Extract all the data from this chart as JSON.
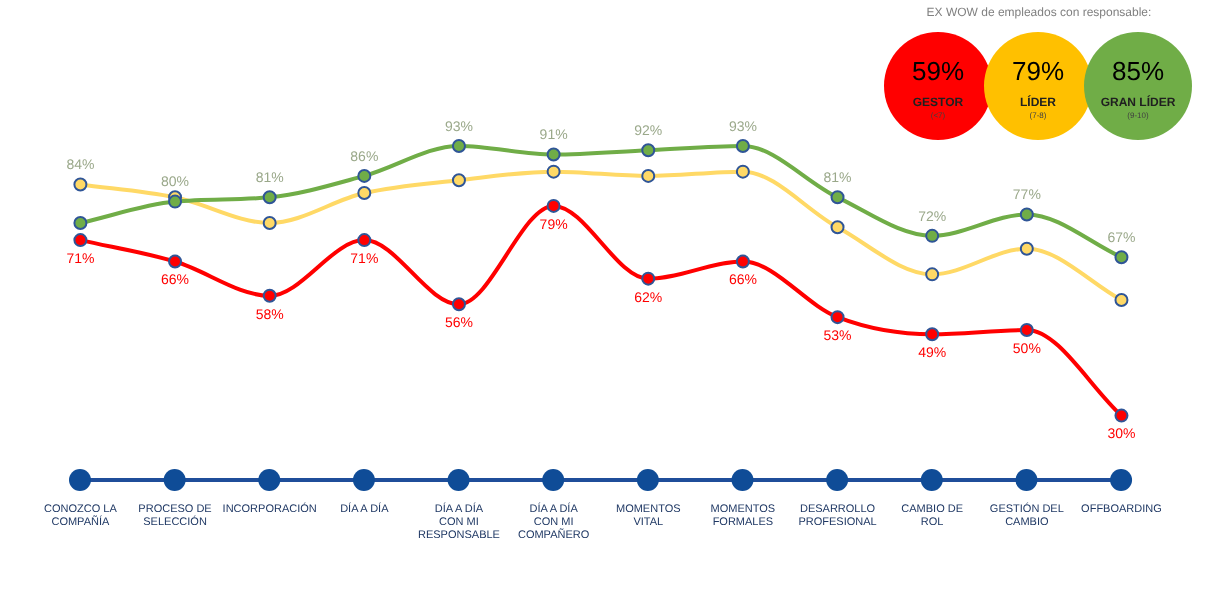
{
  "chart_data": [
    {
      "type": "line",
      "categories": [
        "CONOZCO LA COMPAÑÍA",
        "PROCESO DE SELECCIÓN",
        "INCORPORACIÓN",
        "DÍA A DÍA",
        "DÍA A DÍA CON MI RESPONSABLE",
        "DÍA A DÍA CON MI COMPAÑERO",
        "MOMENTOS VITAL",
        "MOMENTOS FORMALES",
        "DESARROLLO PROFESIONAL",
        "CAMBIO DE ROL",
        "GESTIÓN DEL CAMBIO",
        "OFFBOARDING"
      ],
      "series": [
        {
          "color": "#70ad47",
          "values": [
            75,
            80,
            81,
            86,
            93,
            91,
            92,
            93,
            81,
            72,
            77,
            67
          ],
          "value_labels": [
            null,
            "80%",
            "81%",
            "86%",
            "93%",
            "91%",
            "92%",
            "93%",
            "81%",
            "72%",
            "77%",
            "67%"
          ]
        },
        {
          "color": "#ffd966",
          "values": [
            84,
            81,
            75,
            82,
            85,
            87,
            86,
            87,
            74,
            63,
            69,
            57
          ],
          "value_labels": [
            "84%",
            null,
            null,
            null,
            null,
            null,
            null,
            null,
            null,
            null,
            null,
            null
          ]
        },
        {
          "color": "#ff0000",
          "values": [
            71,
            66,
            58,
            71,
            56,
            79,
            62,
            66,
            53,
            49,
            50,
            30
          ],
          "value_labels": [
            "71%",
            "66%",
            "58%",
            "71%",
            "56%",
            "79%",
            "62%",
            "66%",
            "53%",
            "49%",
            "50%",
            "30%"
          ]
        }
      ],
      "tick_labels": "x",
      "grid": false,
      "legend": false,
      "marker": "circle"
    },
    {
      "type": "other",
      "title": "EX WOW de empleados con responsable:",
      "categories": [
        "GESTOR",
        "LÍDER",
        "GRAN LÍDER"
      ],
      "value_labels": [
        "59%",
        "79%",
        "85%"
      ],
      "colors": [
        "#ff0000",
        "#ffc000",
        "#70ad47"
      ],
      "annotations": [
        "(<7)",
        "(7-8)",
        "(9-10)"
      ]
    }
  ]
}
